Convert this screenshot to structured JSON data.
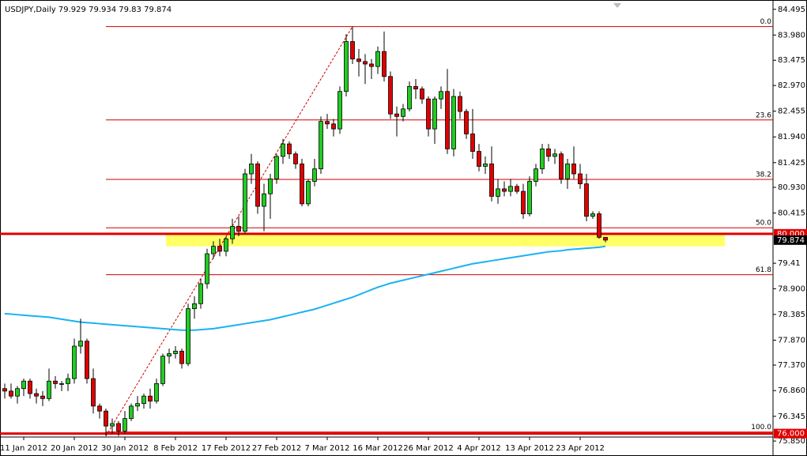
{
  "chart_data": {
    "type": "candlestick",
    "title": "USDJPY,Daily",
    "categories": [
      null,
      null,
      null,
      "11 Jan 2012",
      null,
      null,
      null,
      null,
      null,
      null,
      null,
      "20 Jan 2012",
      null,
      null,
      null,
      null,
      null,
      null,
      null,
      "30 Jan 2012",
      null,
      null,
      null,
      null,
      null,
      null,
      null,
      "8 Feb 2012",
      null,
      null,
      null,
      null,
      null,
      null,
      null,
      "17 Feb 2012",
      null,
      null,
      null,
      null,
      null,
      null,
      null,
      "27 Feb 2012",
      null,
      null,
      null,
      null,
      null,
      null,
      null,
      "7 Mar 2012",
      null,
      null,
      null,
      null,
      null,
      null,
      null,
      "16 Mar 2012",
      null,
      null,
      null,
      null,
      null,
      null,
      null,
      "26 Mar 2012",
      null,
      null,
      null,
      null,
      null,
      null,
      null,
      "4 Apr 2012",
      null,
      null,
      null,
      null,
      null,
      null,
      null,
      "13 Apr 2012",
      null,
      null,
      null,
      null,
      null,
      null,
      null,
      "23 Apr 2012",
      null,
      null,
      null,
      null
    ],
    "open": [
      76.9,
      76.85,
      76.75,
      76.9,
      77.05,
      76.8,
      76.75,
      76.7,
      77.05,
      77.0,
      77.0,
      77.1,
      77.75,
      77.85,
      77.1,
      76.55,
      76.45,
      76.15,
      76.2,
      76.05,
      76.3,
      76.55,
      76.6,
      76.75,
      76.65,
      77.0,
      77.55,
      77.6,
      77.65,
      77.4,
      78.5,
      78.6,
      79.0,
      79.6,
      79.75,
      79.65,
      79.9,
      80.15,
      80.05,
      81.2,
      81.4,
      80.55,
      80.8,
      81.1,
      81.55,
      81.8,
      81.6,
      81.4,
      80.6,
      81.05,
      81.3,
      82.25,
      82.2,
      82.1,
      82.85,
      83.85,
      83.5,
      83.45,
      83.4,
      83.35,
      83.65,
      83.15,
      82.4,
      82.35,
      82.5,
      82.95,
      82.9,
      82.7,
      82.1,
      82.7,
      82.85,
      81.7,
      82.75,
      82.45,
      82.0,
      81.65,
      81.35,
      81.4,
      80.75,
      80.9,
      80.85,
      80.95,
      80.85,
      80.4,
      81.05,
      81.3,
      81.7,
      81.55,
      81.6,
      81.1,
      81.4,
      81.2,
      81.0,
      80.35,
      80.4,
      79.929
    ],
    "high": [
      77.0,
      77.0,
      76.95,
      77.1,
      77.1,
      76.9,
      76.85,
      77.3,
      77.15,
      77.05,
      77.2,
      77.9,
      78.3,
      77.9,
      77.3,
      76.6,
      76.5,
      76.3,
      76.25,
      76.45,
      76.6,
      76.75,
      76.8,
      76.9,
      77.1,
      77.6,
      77.7,
      77.75,
      77.7,
      78.6,
      78.75,
      79.1,
      79.7,
      79.85,
      79.9,
      79.95,
      80.3,
      80.35,
      81.3,
      81.6,
      81.45,
      81.0,
      81.2,
      81.6,
      81.9,
      81.85,
      81.65,
      81.5,
      81.1,
      81.5,
      82.35,
      82.4,
      82.3,
      82.95,
      84.0,
      84.15,
      83.7,
      83.6,
      83.5,
      83.75,
      84.05,
      83.25,
      82.55,
      82.6,
      83.05,
      83.1,
      82.95,
      82.75,
      82.75,
      82.95,
      83.3,
      82.9,
      82.85,
      82.5,
      82.5,
      81.8,
      81.55,
      81.75,
      81.1,
      81.05,
      81.1,
      81.0,
      81.0,
      81.15,
      81.4,
      81.8,
      81.8,
      81.7,
      81.65,
      81.5,
      81.75,
      81.4,
      81.2,
      80.45,
      80.45,
      79.934
    ],
    "low": [
      76.7,
      76.7,
      76.6,
      76.75,
      76.7,
      76.6,
      76.55,
      76.65,
      76.9,
      76.85,
      76.85,
      77.0,
      77.6,
      77.0,
      76.4,
      76.3,
      75.95,
      76.0,
      75.95,
      76.0,
      76.25,
      76.45,
      76.5,
      76.5,
      76.6,
      76.95,
      77.4,
      77.5,
      77.3,
      77.35,
      78.3,
      78.5,
      78.9,
      79.5,
      79.55,
      79.55,
      79.8,
      79.95,
      80.0,
      81.0,
      80.4,
      80.05,
      80.3,
      81.0,
      81.4,
      81.5,
      81.3,
      80.55,
      80.55,
      80.95,
      81.2,
      82.1,
      81.95,
      82.0,
      82.75,
      83.4,
      83.15,
      83.0,
      83.1,
      83.2,
      83.05,
      82.3,
      81.95,
      82.25,
      82.45,
      82.7,
      82.6,
      81.95,
      81.8,
      82.5,
      81.6,
      81.55,
      82.3,
      81.9,
      81.5,
      81.25,
      81.2,
      80.65,
      80.6,
      80.75,
      80.75,
      80.8,
      80.3,
      80.35,
      80.95,
      81.2,
      81.45,
      81.4,
      81.0,
      80.9,
      81.1,
      80.9,
      80.25,
      80.3,
      79.9,
      79.83
    ],
    "close": [
      76.85,
      76.75,
      76.9,
      77.05,
      76.8,
      76.75,
      76.7,
      77.05,
      77.0,
      77.0,
      77.1,
      77.75,
      77.85,
      77.1,
      76.55,
      76.45,
      76.15,
      76.2,
      76.05,
      76.3,
      76.55,
      76.6,
      76.75,
      76.65,
      77.0,
      77.55,
      77.6,
      77.65,
      77.4,
      78.5,
      78.6,
      79.0,
      79.6,
      79.75,
      79.65,
      79.9,
      80.15,
      80.05,
      81.2,
      81.4,
      80.55,
      80.8,
      81.1,
      81.55,
      81.8,
      81.6,
      81.4,
      80.6,
      81.05,
      81.3,
      82.25,
      82.2,
      82.1,
      82.85,
      83.85,
      83.5,
      83.45,
      83.4,
      83.35,
      83.65,
      83.15,
      82.4,
      82.35,
      82.5,
      82.95,
      82.9,
      82.7,
      82.1,
      82.7,
      82.85,
      81.7,
      82.75,
      82.45,
      82.0,
      81.65,
      81.35,
      81.4,
      80.75,
      80.9,
      80.85,
      80.95,
      80.85,
      80.4,
      81.05,
      81.3,
      81.7,
      81.55,
      81.6,
      81.1,
      81.4,
      81.2,
      81.0,
      80.35,
      80.4,
      79.93,
      79.874
    ],
    "up_color": "#22cc22",
    "down_color": "#e00000",
    "ma": {
      "color": "#1ab2f0",
      "values": [
        78.4,
        78.39,
        78.38,
        78.37,
        78.36,
        78.35,
        78.34,
        78.33,
        78.31,
        78.29,
        78.27,
        78.25,
        78.23,
        78.22,
        78.21,
        78.2,
        78.19,
        78.18,
        78.17,
        78.16,
        78.15,
        78.14,
        78.13,
        78.12,
        78.11,
        78.1,
        78.09,
        78.08,
        78.07,
        78.07,
        78.07,
        78.08,
        78.09,
        78.1,
        78.12,
        78.14,
        78.16,
        78.18,
        78.2,
        78.22,
        78.24,
        78.26,
        78.28,
        78.31,
        78.34,
        78.37,
        78.4,
        78.43,
        78.46,
        78.49,
        78.53,
        78.57,
        78.61,
        78.65,
        78.69,
        78.73,
        78.78,
        78.83,
        78.88,
        78.93,
        78.97,
        79.01,
        79.04,
        79.07,
        79.1,
        79.13,
        79.16,
        79.19,
        79.22,
        79.25,
        79.28,
        79.31,
        79.34,
        79.37,
        79.4,
        79.42,
        79.44,
        79.46,
        79.48,
        79.5,
        79.52,
        79.54,
        79.56,
        79.58,
        79.6,
        79.62,
        79.64,
        79.65,
        79.66,
        79.68,
        79.69,
        79.7,
        79.71,
        79.72,
        79.73,
        79.75
      ]
    },
    "fibonacci": {
      "color": "#d00000",
      "levels": [
        {
          "value": 84.15,
          "label": "0.0"
        },
        {
          "value": 82.28,
          "label": "23.6"
        },
        {
          "value": 81.09,
          "label": "38.2"
        },
        {
          "value": 80.12,
          "label": "50.0"
        },
        {
          "value": 79.18,
          "label": "61.8"
        },
        {
          "value": 76.03,
          "label": "100.0"
        }
      ]
    },
    "hlines": {
      "color": "#e00000",
      "lines": [
        {
          "value": 80,
          "label": "80.000"
        },
        {
          "value": 76,
          "label": "76.000"
        }
      ]
    },
    "zone": {
      "color": "#ffff66",
      "range": [
        79.75,
        80.0
      ]
    },
    "ylim": [
      75.93,
      84.65
    ],
    "yticks": [
      84.495,
      {
        "value": 83.98,
        "label": "83.980"
      },
      83.475,
      {
        "value": 82.97,
        "label": "82.970"
      },
      82.455,
      {
        "value": 81.94,
        "label": "81.940"
      },
      81.425,
      {
        "value": 80.93,
        "label": "80.930"
      },
      80.415,
      79.41,
      {
        "value": 78.9,
        "label": "78.900"
      },
      78.385,
      {
        "value": 77.87,
        "label": "77.870"
      },
      {
        "value": 77.37,
        "label": "77.370"
      },
      {
        "value": 76.86,
        "label": "76.860"
      },
      76.345,
      {
        "value": 75.85,
        "label": "75.850"
      }
    ]
  }
}
